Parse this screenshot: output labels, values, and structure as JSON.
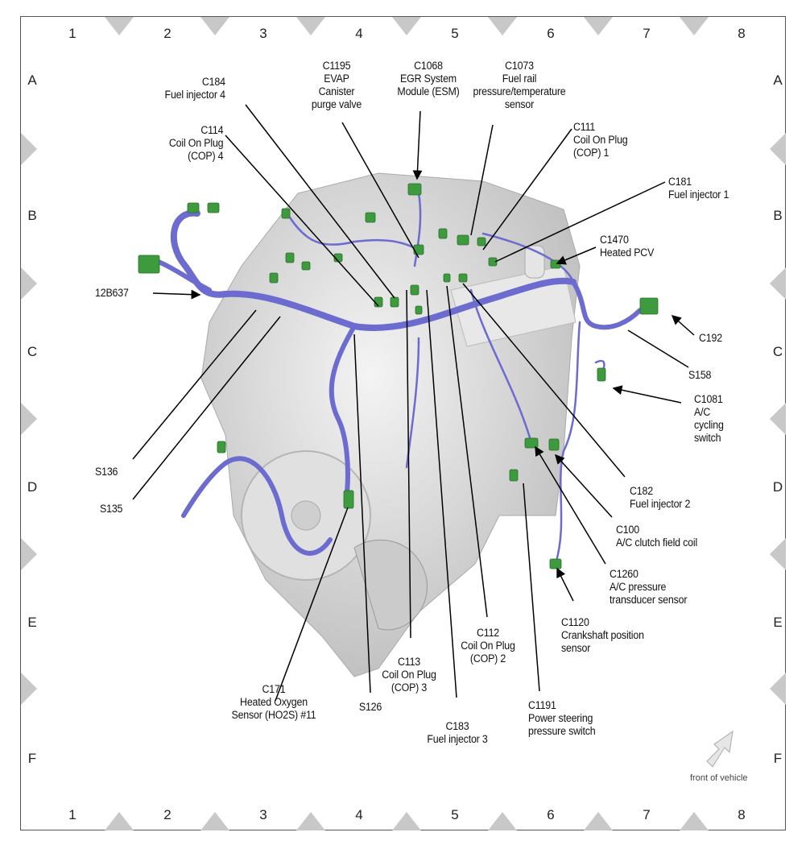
{
  "grid": {
    "columns": [
      "1",
      "2",
      "3",
      "4",
      "5",
      "6",
      "7",
      "8"
    ],
    "rows": [
      "A",
      "B",
      "C",
      "D",
      "E",
      "F"
    ]
  },
  "colors": {
    "harness": "#6b6bd0",
    "connector": "#3d9a3d",
    "engine": "#d9d9d9",
    "marker": "#c8c8c8"
  },
  "labels": [
    {
      "id": "c184",
      "lines": [
        "C184",
        "Fuel injector 4"
      ]
    },
    {
      "id": "c1195",
      "lines": [
        "C1195",
        "EVAP",
        "Canister",
        "purge valve"
      ]
    },
    {
      "id": "c1068",
      "lines": [
        "C1068",
        "EGR System",
        "Module (ESM)"
      ]
    },
    {
      "id": "c1073",
      "lines": [
        "C1073",
        "Fuel rail",
        "pressure/temperature",
        "sensor"
      ]
    },
    {
      "id": "c111",
      "lines": [
        "C111",
        "Coil On Plug",
        "(COP) 1"
      ]
    },
    {
      "id": "c181",
      "lines": [
        "C181",
        "Fuel injector 1"
      ]
    },
    {
      "id": "c1470",
      "lines": [
        "C1470",
        "Heated PCV"
      ]
    },
    {
      "id": "c114",
      "lines": [
        "C114",
        "Coil On Plug",
        "(COP) 4"
      ]
    },
    {
      "id": "12b637",
      "lines": [
        "12B637"
      ]
    },
    {
      "id": "c192",
      "lines": [
        "C192"
      ]
    },
    {
      "id": "s158",
      "lines": [
        "S158"
      ]
    },
    {
      "id": "c1081",
      "lines": [
        "C1081",
        "A/C",
        "cycling",
        "switch"
      ]
    },
    {
      "id": "c182",
      "lines": [
        "C182",
        "Fuel injector 2"
      ]
    },
    {
      "id": "c100",
      "lines": [
        "C100",
        "A/C clutch field coil"
      ]
    },
    {
      "id": "c1260",
      "lines": [
        "C1260",
        "A/C pressure",
        "transducer sensor"
      ]
    },
    {
      "id": "c1120",
      "lines": [
        "C1120",
        "Crankshaft position",
        "sensor"
      ]
    },
    {
      "id": "c1191",
      "lines": [
        "C1191",
        "Power steering",
        "pressure switch"
      ]
    },
    {
      "id": "c183",
      "lines": [
        "C183",
        "Fuel injector 3"
      ]
    },
    {
      "id": "c112",
      "lines": [
        "C112",
        "Coil On Plug",
        "(COP) 2"
      ]
    },
    {
      "id": "c113",
      "lines": [
        "C113",
        "Coil On Plug",
        "(COP) 3"
      ]
    },
    {
      "id": "s126",
      "lines": [
        "S126"
      ]
    },
    {
      "id": "c171",
      "lines": [
        "C171",
        "Heated Oxygen",
        "Sensor (HO2S) #11"
      ]
    },
    {
      "id": "s136",
      "lines": [
        "S136"
      ]
    },
    {
      "id": "s135",
      "lines": [
        "S135"
      ]
    }
  ],
  "orientation": {
    "text": "front of vehicle",
    "icon": "arrow-up-right-icon"
  }
}
